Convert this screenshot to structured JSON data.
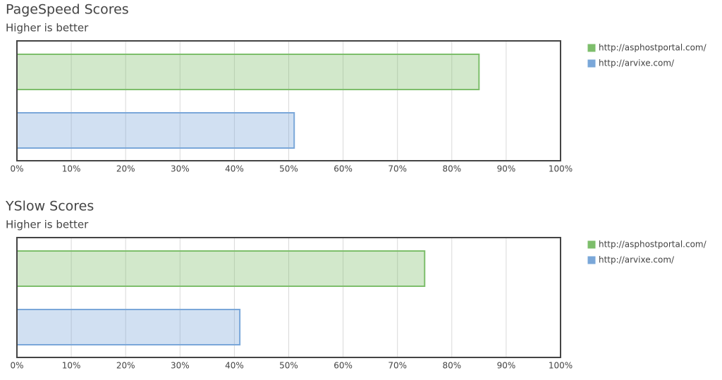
{
  "chart_data": [
    {
      "type": "bar",
      "orientation": "horizontal",
      "title": "PageSpeed Scores",
      "subtitle": "Higher is better",
      "series": [
        {
          "name": "http://asphostportal.com/",
          "color": "#7dbe6b",
          "values": [
            85
          ]
        },
        {
          "name": "http://arvixe.com/",
          "color": "#7aa7d9",
          "values": [
            51
          ]
        }
      ],
      "xlim": [
        0,
        100
      ],
      "xticks": [
        {
          "value": 0,
          "label": "0%"
        },
        {
          "value": 10,
          "label": "10%"
        },
        {
          "value": 20,
          "label": "20%"
        },
        {
          "value": 30,
          "label": "30%"
        },
        {
          "value": 40,
          "label": "40%"
        },
        {
          "value": 50,
          "label": "50%"
        },
        {
          "value": 60,
          "label": "60%"
        },
        {
          "value": 70,
          "label": "70%"
        },
        {
          "value": 80,
          "label": "80%"
        },
        {
          "value": 90,
          "label": "90%"
        },
        {
          "value": 100,
          "label": "100%"
        }
      ],
      "grid": true,
      "legend": "right"
    },
    {
      "type": "bar",
      "orientation": "horizontal",
      "title": "YSlow Scores",
      "subtitle": "Higher is better",
      "series": [
        {
          "name": "http://asphostportal.com/",
          "color": "#7dbe6b",
          "values": [
            75
          ]
        },
        {
          "name": "http://arvixe.com/",
          "color": "#7aa7d9",
          "values": [
            41
          ]
        }
      ],
      "xlim": [
        0,
        100
      ],
      "xticks": [
        {
          "value": 0,
          "label": "0%"
        },
        {
          "value": 10,
          "label": "10%"
        },
        {
          "value": 20,
          "label": "20%"
        },
        {
          "value": 30,
          "label": "30%"
        },
        {
          "value": 40,
          "label": "40%"
        },
        {
          "value": 50,
          "label": "50%"
        },
        {
          "value": 60,
          "label": "60%"
        },
        {
          "value": 70,
          "label": "70%"
        },
        {
          "value": 80,
          "label": "80%"
        },
        {
          "value": 90,
          "label": "90%"
        },
        {
          "value": 100,
          "label": "100%"
        }
      ],
      "grid": true,
      "legend": "right"
    }
  ]
}
